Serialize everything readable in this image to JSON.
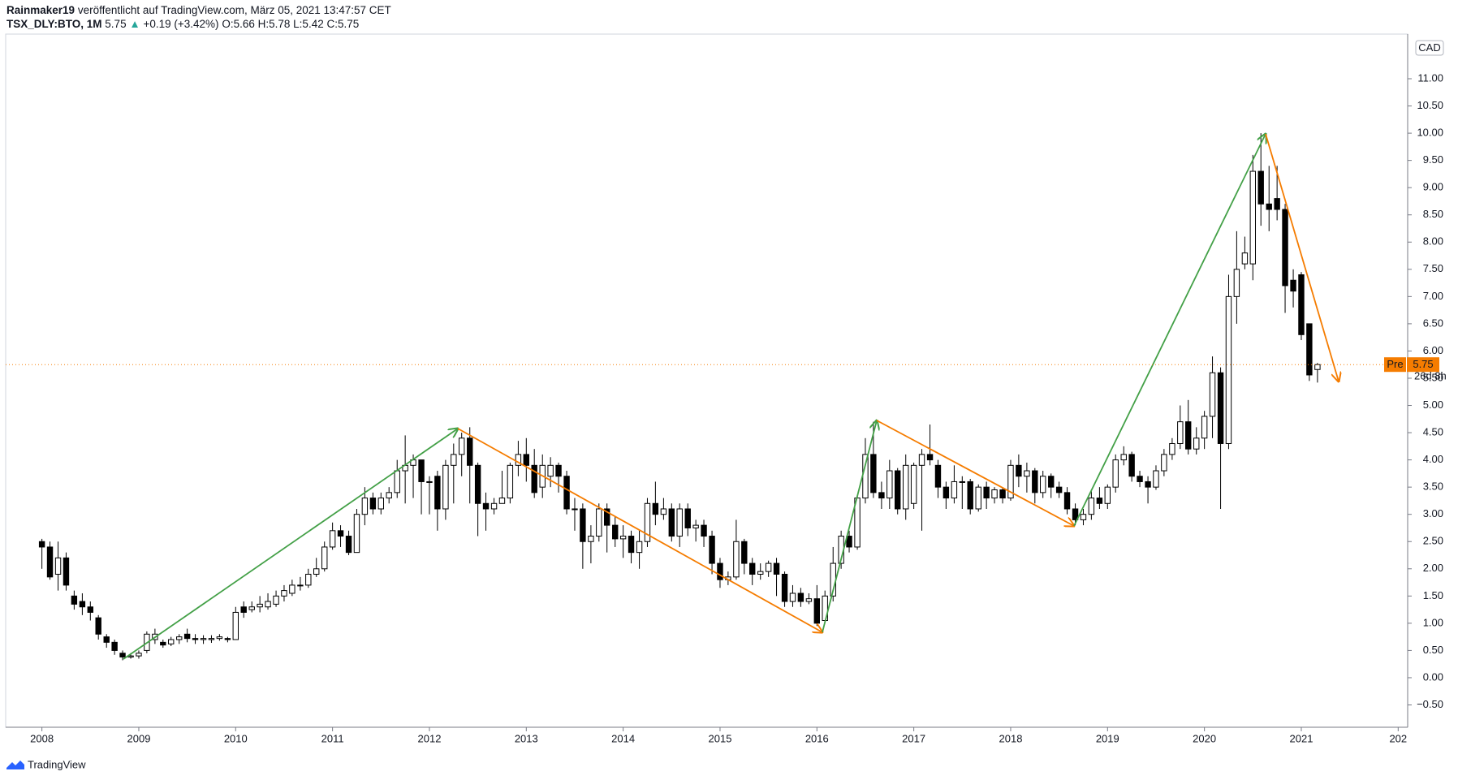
{
  "header": {
    "author": "Rainmaker19",
    "published": "veröffentlicht auf TradingView.com, März 05, 2021 13:47:57 CET",
    "symbol": "TSX_DLY:BTO, 1M",
    "last": "5.75",
    "arrow": "▲",
    "change": "+0.19 (+3.42%)",
    "o": "O:5.66",
    "h": "H:5.78",
    "l": "L:5.42",
    "c": "C:5.75"
  },
  "footer": {
    "logo": "TradingView"
  },
  "chart_data": {
    "type": "candlestick",
    "currency": "CAD",
    "price_prefix": "Pre",
    "countdown": "26d 8h",
    "up_color": "#ffffff",
    "down_color": "#000000",
    "last_price_color": "#f57c00",
    "grid": false,
    "x": [
      2008,
      2008.083,
      2008.167,
      2008.25,
      2008.333,
      2008.417,
      2008.5,
      2008.583,
      2008.667,
      2008.75,
      2008.833,
      2008.917,
      2009,
      2009.083,
      2009.167,
      2009.25,
      2009.333,
      2009.417,
      2009.5,
      2009.583,
      2009.667,
      2009.75,
      2009.833,
      2009.917,
      2010,
      2010.083,
      2010.167,
      2010.25,
      2010.333,
      2010.417,
      2010.5,
      2010.583,
      2010.667,
      2010.75,
      2010.833,
      2010.917,
      2011,
      2011.083,
      2011.167,
      2011.25,
      2011.333,
      2011.417,
      2011.5,
      2011.583,
      2011.667,
      2011.75,
      2011.833,
      2011.917,
      2012,
      2012.083,
      2012.167,
      2012.25,
      2012.333,
      2012.417,
      2012.5,
      2012.583,
      2012.667,
      2012.75,
      2012.833,
      2012.917,
      2013,
      2013.083,
      2013.167,
      2013.25,
      2013.333,
      2013.417,
      2013.5,
      2013.583,
      2013.667,
      2013.75,
      2013.833,
      2013.917,
      2014,
      2014.083,
      2014.167,
      2014.25,
      2014.333,
      2014.417,
      2014.5,
      2014.583,
      2014.667,
      2014.75,
      2014.833,
      2014.917,
      2015,
      2015.083,
      2015.167,
      2015.25,
      2015.333,
      2015.417,
      2015.5,
      2015.583,
      2015.667,
      2015.75,
      2015.833,
      2015.917,
      2016,
      2016.083,
      2016.167,
      2016.25,
      2016.333,
      2016.417,
      2016.5,
      2016.583,
      2016.667,
      2016.75,
      2016.833,
      2016.917,
      2017,
      2017.083,
      2017.167,
      2017.25,
      2017.333,
      2017.417,
      2017.5,
      2017.583,
      2017.667,
      2017.75,
      2017.833,
      2017.917,
      2018,
      2018.083,
      2018.167,
      2018.25,
      2018.333,
      2018.417,
      2018.5,
      2018.583,
      2018.667,
      2018.75,
      2018.833,
      2018.917,
      2019,
      2019.083,
      2019.167,
      2019.25,
      2019.333,
      2019.417,
      2019.5,
      2019.583,
      2019.667,
      2019.75,
      2019.833,
      2019.917,
      2020,
      2020.083,
      2020.167,
      2020.25,
      2020.333,
      2020.417,
      2020.5,
      2020.583,
      2020.667,
      2020.75,
      2020.833,
      2020.917,
      2021,
      2021.083,
      2021.167
    ],
    "open": [
      2.5,
      2.4,
      1.9,
      2.2,
      1.5,
      1.4,
      1.3,
      1.1,
      0.75,
      0.65,
      0.45,
      0.38,
      0.4,
      0.5,
      0.7,
      0.65,
      0.62,
      0.7,
      0.8,
      0.72,
      0.7,
      0.7,
      0.72,
      0.72,
      0.7,
      1.3,
      1.25,
      1.3,
      1.3,
      1.35,
      1.5,
      1.55,
      1.7,
      1.7,
      1.9,
      2.0,
      2.4,
      2.7,
      2.6,
      2.3,
      3.0,
      3.3,
      3.1,
      3.3,
      3.4,
      3.8,
      3.9,
      4.0,
      3.6,
      3.7,
      3.1,
      3.9,
      4.1,
      4.4,
      3.9,
      3.2,
      3.1,
      3.2,
      3.3,
      3.9,
      4.1,
      3.9,
      3.5,
      3.7,
      3.9,
      3.7,
      3.1,
      3.1,
      2.5,
      2.6,
      3.1,
      2.8,
      2.55,
      2.6,
      2.3,
      2.5,
      3.2,
      3.0,
      3.1,
      2.6,
      3.1,
      2.75,
      2.8,
      2.6,
      2.1,
      1.8,
      1.85,
      2.5,
      2.1,
      1.9,
      1.95,
      2.1,
      1.9,
      1.4,
      1.55,
      1.4,
      1.45,
      1.05,
      1.5,
      2.1,
      2.6,
      2.4,
      3.3,
      4.1,
      3.4,
      3.3,
      3.8,
      3.1,
      3.2,
      3.9,
      4.1,
      3.9,
      3.5,
      3.3,
      3.6,
      3.6,
      3.1,
      3.5,
      3.3,
      3.45,
      3.3,
      3.9,
      3.7,
      3.8,
      3.4,
      3.7,
      3.5,
      3.4,
      3.1,
      2.9,
      3.0,
      3.3,
      3.2,
      3.5,
      4.0,
      4.1,
      3.7,
      3.6,
      3.5,
      3.8,
      4.1,
      4.3,
      4.7,
      4.2,
      4.4,
      4.8,
      5.6,
      4.3,
      7.0,
      7.6,
      7.6,
      9.3,
      8.7,
      8.8,
      8.6,
      7.3,
      7.4,
      6.5,
      5.66
    ],
    "high": [
      2.55,
      2.5,
      2.5,
      2.3,
      1.6,
      1.55,
      1.4,
      1.15,
      0.8,
      0.7,
      0.5,
      0.45,
      0.5,
      0.85,
      0.9,
      0.7,
      0.75,
      0.8,
      0.9,
      0.8,
      0.78,
      0.78,
      0.8,
      0.75,
      1.3,
      1.4,
      1.4,
      1.5,
      1.55,
      1.6,
      1.7,
      1.8,
      1.85,
      2.0,
      2.2,
      2.5,
      2.85,
      2.8,
      2.7,
      3.1,
      3.5,
      3.4,
      3.4,
      3.5,
      4.0,
      4.45,
      4.1,
      4.0,
      3.7,
      3.8,
      4.0,
      4.3,
      4.5,
      4.6,
      3.95,
      3.4,
      3.3,
      3.8,
      3.95,
      4.35,
      4.4,
      4.2,
      4.1,
      4.05,
      3.95,
      3.8,
      3.3,
      3.2,
      2.8,
      3.2,
      3.2,
      2.95,
      2.8,
      2.7,
      2.7,
      3.3,
      3.6,
      3.3,
      3.2,
      3.2,
      3.2,
      2.9,
      2.9,
      2.7,
      2.2,
      1.95,
      2.9,
      2.55,
      2.2,
      2.1,
      2.15,
      2.2,
      1.95,
      1.7,
      1.65,
      1.55,
      1.7,
      1.6,
      2.4,
      2.7,
      2.7,
      3.35,
      4.4,
      4.7,
      3.6,
      4.0,
      3.85,
      4.1,
      3.95,
      4.2,
      4.65,
      4.0,
      3.6,
      3.9,
      3.7,
      3.65,
      3.55,
      3.6,
      3.5,
      3.5,
      4.0,
      4.1,
      3.95,
      3.85,
      3.8,
      3.75,
      3.6,
      3.5,
      3.2,
      3.1,
      3.45,
      3.5,
      3.55,
      4.1,
      4.25,
      4.15,
      3.8,
      3.7,
      3.9,
      4.2,
      4.4,
      5.0,
      5.1,
      4.6,
      4.9,
      5.9,
      5.7,
      7.4,
      8.2,
      8.1,
      9.6,
      10.0,
      9.4,
      9.4,
      8.7,
      7.5,
      7.45,
      6.5,
      5.78
    ],
    "low": [
      2.0,
      1.8,
      1.6,
      1.6,
      1.25,
      1.15,
      1.05,
      0.7,
      0.55,
      0.42,
      0.32,
      0.35,
      0.35,
      0.45,
      0.62,
      0.55,
      0.58,
      0.62,
      0.65,
      0.62,
      0.62,
      0.64,
      0.68,
      0.65,
      0.7,
      1.1,
      1.2,
      1.2,
      1.25,
      1.3,
      1.4,
      1.5,
      1.6,
      1.65,
      1.85,
      1.95,
      2.35,
      2.4,
      2.25,
      2.3,
      2.8,
      3.0,
      3.0,
      3.2,
      3.3,
      3.2,
      3.3,
      3.0,
      3.0,
      2.7,
      2.9,
      3.2,
      3.7,
      3.2,
      2.6,
      2.7,
      3.0,
      3.2,
      3.2,
      3.7,
      3.6,
      3.3,
      3.3,
      3.5,
      3.4,
      3.0,
      2.7,
      2.0,
      2.1,
      2.5,
      2.3,
      2.4,
      2.2,
      2.1,
      2.0,
      2.4,
      2.8,
      2.9,
      2.5,
      2.4,
      2.6,
      2.5,
      2.4,
      1.9,
      1.65,
      1.7,
      1.8,
      1.9,
      1.7,
      1.8,
      1.85,
      1.5,
      1.3,
      1.3,
      1.3,
      1.35,
      0.95,
      1.0,
      1.4,
      2.0,
      2.3,
      2.35,
      3.2,
      3.3,
      3.1,
      3.1,
      3.0,
      2.9,
      3.1,
      2.7,
      3.9,
      3.3,
      3.1,
      3.2,
      3.1,
      3.0,
      3.05,
      3.1,
      3.2,
      3.2,
      3.25,
      3.5,
      3.4,
      3.2,
      3.3,
      3.3,
      3.3,
      3.0,
      2.8,
      2.8,
      2.9,
      3.1,
      3.1,
      3.4,
      3.9,
      3.6,
      3.5,
      3.2,
      3.45,
      3.7,
      4.0,
      4.2,
      4.1,
      4.1,
      4.2,
      4.4,
      3.1,
      4.2,
      6.5,
      7.5,
      7.3,
      8.3,
      8.2,
      8.4,
      6.7,
      6.8,
      6.2,
      5.45,
      5.42
    ],
    "close": [
      2.4,
      1.85,
      2.2,
      1.7,
      1.35,
      1.3,
      1.2,
      0.8,
      0.65,
      0.5,
      0.38,
      0.4,
      0.45,
      0.8,
      0.8,
      0.6,
      0.7,
      0.75,
      0.72,
      0.7,
      0.72,
      0.72,
      0.75,
      0.7,
      1.2,
      1.2,
      1.3,
      1.35,
      1.4,
      1.5,
      1.6,
      1.7,
      1.7,
      1.9,
      2.0,
      2.4,
      2.7,
      2.6,
      2.3,
      3.0,
      3.3,
      3.1,
      3.3,
      3.4,
      3.8,
      3.9,
      4.0,
      3.6,
      3.6,
      3.1,
      3.9,
      4.1,
      4.4,
      3.9,
      3.2,
      3.1,
      3.2,
      3.3,
      3.9,
      4.1,
      3.9,
      3.4,
      3.9,
      3.9,
      3.7,
      3.1,
      3.1,
      2.5,
      2.6,
      3.1,
      2.8,
      2.55,
      2.6,
      2.3,
      2.5,
      3.2,
      3.0,
      3.1,
      2.6,
      3.1,
      2.75,
      2.8,
      2.6,
      2.1,
      1.8,
      1.85,
      2.5,
      2.1,
      1.9,
      1.95,
      2.1,
      1.9,
      1.4,
      1.55,
      1.4,
      1.45,
      1.0,
      1.5,
      2.1,
      2.6,
      2.4,
      3.3,
      4.1,
      3.4,
      3.3,
      3.8,
      3.1,
      3.9,
      3.9,
      4.1,
      4.0,
      3.5,
      3.3,
      3.6,
      3.6,
      3.1,
      3.5,
      3.3,
      3.45,
      3.3,
      3.9,
      3.7,
      3.8,
      3.4,
      3.7,
      3.5,
      3.4,
      3.1,
      2.9,
      3.0,
      3.3,
      3.2,
      3.5,
      4.0,
      4.1,
      3.7,
      3.6,
      3.5,
      3.8,
      4.1,
      4.3,
      4.7,
      4.2,
      4.4,
      4.8,
      5.6,
      4.3,
      7.0,
      7.5,
      7.8,
      9.3,
      8.7,
      8.6,
      8.6,
      7.2,
      7.1,
      6.3,
      5.56,
      5.75
    ],
    "xlim": [
      2007.626,
      2022.098
    ],
    "xticks": [
      2008,
      2009,
      2010,
      2011,
      2012,
      2013,
      2014,
      2015,
      2016,
      2017,
      2018,
      2019,
      2020,
      2021,
      {
        "value": 2022,
        "label": "202"
      }
    ],
    "ylim": [
      -0.91,
      11.82
    ],
    "yticks": [
      {
        "value": -0.5,
        "label": "−0.50"
      },
      {
        "value": 0,
        "label": "0.00"
      },
      {
        "value": 0.5,
        "label": "0.50"
      },
      {
        "value": 1,
        "label": "1.00"
      },
      {
        "value": 1.5,
        "label": "1.50"
      },
      {
        "value": 2,
        "label": "2.00"
      },
      {
        "value": 2.5,
        "label": "2.50"
      },
      {
        "value": 3,
        "label": "3.00"
      },
      {
        "value": 3.5,
        "label": "3.50"
      },
      {
        "value": 4,
        "label": "4.00"
      },
      {
        "value": 4.5,
        "label": "4.50"
      },
      {
        "value": 5,
        "label": "5.00"
      },
      {
        "value": 5.5,
        "label": "5.50"
      },
      {
        "value": 6,
        "label": "6.00"
      },
      {
        "value": 6.5,
        "label": "6.50"
      },
      {
        "value": 7,
        "label": "7.00"
      },
      {
        "value": 7.5,
        "label": "7.50"
      },
      {
        "value": 8,
        "label": "8.00"
      },
      {
        "value": 8.5,
        "label": "8.50"
      },
      {
        "value": 9,
        "label": "9.00"
      },
      {
        "value": 9.5,
        "label": "9.50"
      },
      {
        "value": 10,
        "label": "10.00"
      },
      {
        "value": 10.5,
        "label": "10.50"
      },
      {
        "value": 11,
        "label": "11.00"
      }
    ]
  }
}
